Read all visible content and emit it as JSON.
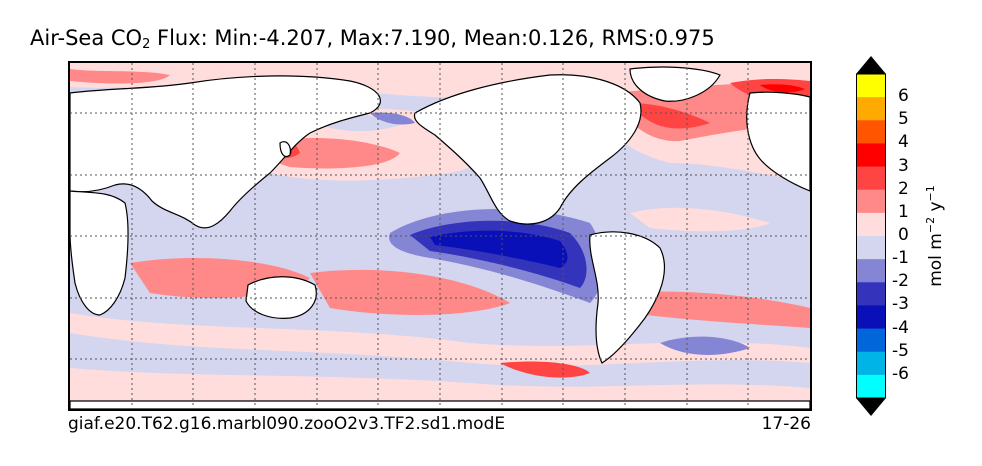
{
  "title": {
    "prefix": "Air-Sea CO",
    "subscript": "2",
    "suffix": "  Flux: Min:-4.207, Max:7.190, Mean:0.126, RMS:0.975"
  },
  "footer": {
    "case_name": "giaf.e20.T62.g16.marbl090.zooO2v3.TF2.sd1.modE",
    "years": "17-26"
  },
  "colorbar": {
    "units_base": "mol m",
    "units_exp1": "−2",
    "units_mid": " y",
    "units_exp2": "−1",
    "tick_labels": [
      "6",
      "5",
      "4",
      "3",
      "2",
      "1",
      "0",
      "-1",
      "-2",
      "-3",
      "-4",
      "-5",
      "-6"
    ],
    "colors_top_to_bottom": [
      "#ffff00",
      "#ffaa00",
      "#ff5500",
      "#ff0000",
      "#ff4444",
      "#ff8888",
      "#ffdddd",
      "#d4d5ee",
      "#8585d6",
      "#3333bb",
      "#0a10b8",
      "#0066d9",
      "#00b4e8",
      "#00ffff"
    ],
    "overflow_color": "#000000"
  },
  "map": {
    "projection": "cylindrical",
    "land_color": "#ffffff",
    "graticule": "dotted"
  }
}
